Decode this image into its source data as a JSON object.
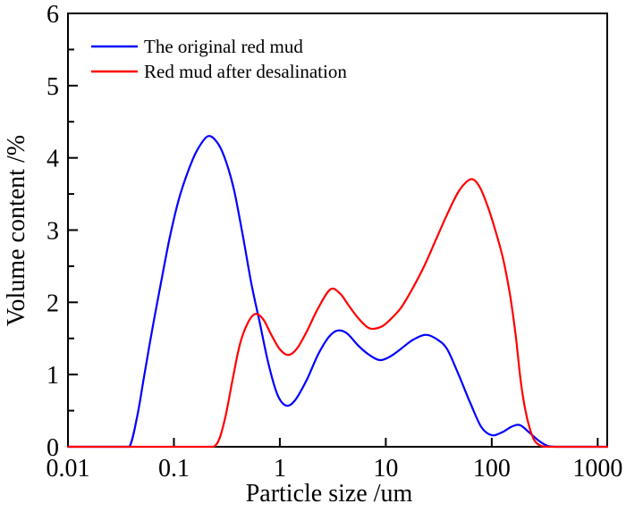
{
  "chart_data": {
    "type": "line",
    "title": "",
    "xlabel": "Particle size /um",
    "ylabel": "Volume content /%",
    "x_scale": "log",
    "xlim": [
      0.01,
      1230
    ],
    "ylim": [
      0,
      6
    ],
    "x_ticks": [
      0.01,
      0.1,
      1,
      10,
      100,
      1000
    ],
    "x_tick_labels": [
      "0.01",
      "0.1",
      "1",
      "10",
      "100",
      "1000"
    ],
    "y_ticks": [
      0,
      1,
      2,
      3,
      4,
      5,
      6
    ],
    "y_tick_labels": [
      "0",
      "1",
      "2",
      "3",
      "4",
      "5",
      "6"
    ],
    "y_minor_ticks": [
      0.5,
      1.5,
      2.5,
      3.5,
      4.5,
      5.5
    ],
    "grid": false,
    "legend_position": "top-left-inside",
    "axis_color": "#000000",
    "background_color": "#ffffff",
    "series": [
      {
        "name": "The original red mud",
        "color": "#0000ff",
        "points": [
          [
            0.01,
            0
          ],
          [
            0.02,
            0
          ],
          [
            0.03,
            0
          ],
          [
            0.038,
            0
          ],
          [
            0.045,
            0.42
          ],
          [
            0.052,
            0.95
          ],
          [
            0.062,
            1.6
          ],
          [
            0.075,
            2.25
          ],
          [
            0.09,
            2.85
          ],
          [
            0.11,
            3.4
          ],
          [
            0.135,
            3.8
          ],
          [
            0.165,
            4.1
          ],
          [
            0.21,
            4.3
          ],
          [
            0.26,
            4.2
          ],
          [
            0.31,
            3.95
          ],
          [
            0.37,
            3.55
          ],
          [
            0.45,
            2.9
          ],
          [
            0.54,
            2.25
          ],
          [
            0.65,
            1.7
          ],
          [
            0.78,
            1.15
          ],
          [
            0.95,
            0.72
          ],
          [
            1.15,
            0.57
          ],
          [
            1.4,
            0.65
          ],
          [
            1.8,
            0.93
          ],
          [
            2.3,
            1.28
          ],
          [
            2.9,
            1.52
          ],
          [
            3.5,
            1.61
          ],
          [
            4.3,
            1.57
          ],
          [
            5.5,
            1.4
          ],
          [
            7,
            1.27
          ],
          [
            8.8,
            1.2
          ],
          [
            11,
            1.25
          ],
          [
            14,
            1.36
          ],
          [
            18,
            1.48
          ],
          [
            24,
            1.55
          ],
          [
            31,
            1.48
          ],
          [
            38,
            1.35
          ],
          [
            48,
            1.02
          ],
          [
            63,
            0.6
          ],
          [
            80,
            0.27
          ],
          [
            100,
            0.16
          ],
          [
            125,
            0.2
          ],
          [
            155,
            0.28
          ],
          [
            185,
            0.3
          ],
          [
            225,
            0.2
          ],
          [
            280,
            0.08
          ],
          [
            340,
            0.01
          ],
          [
            420,
            0
          ],
          [
            700,
            0
          ],
          [
            1227,
            0
          ]
        ]
      },
      {
        "name": "Red mud after desalination",
        "color": "#ff0000",
        "points": [
          [
            0.01,
            0
          ],
          [
            0.06,
            0
          ],
          [
            0.12,
            0
          ],
          [
            0.18,
            0
          ],
          [
            0.235,
            0
          ],
          [
            0.27,
            0.12
          ],
          [
            0.31,
            0.45
          ],
          [
            0.36,
            0.95
          ],
          [
            0.42,
            1.42
          ],
          [
            0.5,
            1.72
          ],
          [
            0.59,
            1.84
          ],
          [
            0.7,
            1.76
          ],
          [
            0.83,
            1.55
          ],
          [
            1,
            1.35
          ],
          [
            1.2,
            1.27
          ],
          [
            1.45,
            1.36
          ],
          [
            1.8,
            1.6
          ],
          [
            2.3,
            1.92
          ],
          [
            3,
            2.18
          ],
          [
            3.7,
            2.12
          ],
          [
            4.5,
            1.95
          ],
          [
            5.5,
            1.78
          ],
          [
            7,
            1.64
          ],
          [
            9,
            1.66
          ],
          [
            11,
            1.76
          ],
          [
            14,
            1.93
          ],
          [
            18,
            2.2
          ],
          [
            23,
            2.5
          ],
          [
            30,
            2.88
          ],
          [
            38,
            3.22
          ],
          [
            48,
            3.52
          ],
          [
            58,
            3.67
          ],
          [
            67,
            3.7
          ],
          [
            78,
            3.58
          ],
          [
            92,
            3.32
          ],
          [
            108,
            3.0
          ],
          [
            128,
            2.6
          ],
          [
            148,
            2.12
          ],
          [
            168,
            1.55
          ],
          [
            188,
            0.9
          ],
          [
            208,
            0.5
          ],
          [
            230,
            0.24
          ],
          [
            255,
            0.08
          ],
          [
            295,
            0.01
          ],
          [
            360,
            0
          ],
          [
            700,
            0
          ],
          [
            1227,
            0
          ]
        ]
      }
    ]
  }
}
